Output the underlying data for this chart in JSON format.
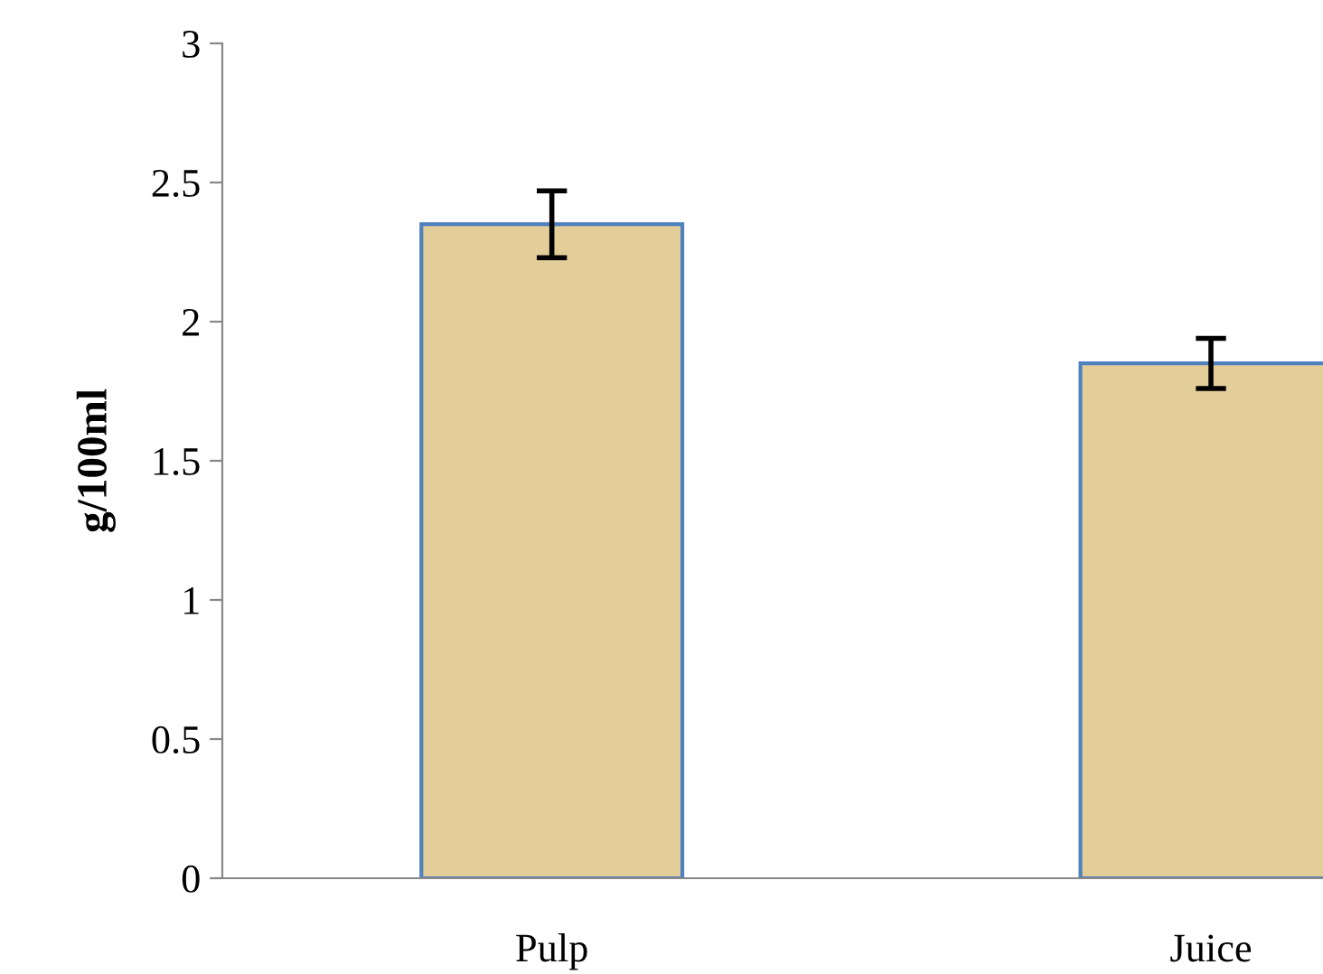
{
  "chart_data": {
    "type": "bar",
    "ylabel": "g/100ml",
    "categories": [
      "Pulp",
      "Juice"
    ],
    "values": [
      2.35,
      1.85
    ],
    "errors": [
      0.12,
      0.09
    ],
    "color": "#e3cd98",
    "ylim": [
      0,
      3
    ],
    "yticks": [
      0,
      0.5,
      1,
      1.5,
      2,
      2.5,
      3
    ],
    "grid": false
  }
}
